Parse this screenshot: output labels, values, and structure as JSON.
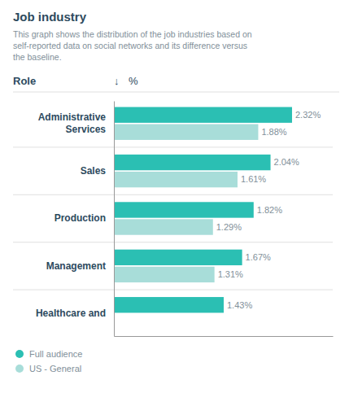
{
  "chart_data": {
    "type": "bar",
    "orientation": "horizontal",
    "title": "Job industry",
    "subtitle": "This graph shows the distribution of the job industries based on\nself-reported data on social networks and its difference versus\nthe baseline.",
    "ylabel": "Role",
    "xlabel": "%",
    "annotations": [
      "↓"
    ],
    "categories": [
      "Administrative\nServices",
      "Sales",
      "Production",
      "Management",
      "Healthcare and"
    ],
    "series": [
      {
        "name": "Full audience",
        "color": "#2bbfb3",
        "values": [
          2.32,
          2.04,
          1.82,
          1.67,
          1.43
        ],
        "value_labels": [
          "2.32%",
          "2.04%",
          "1.82%",
          "1.67%",
          "1.43%"
        ]
      },
      {
        "name": "US - General",
        "color": "#a8ddd9",
        "values": [
          1.88,
          1.61,
          1.29,
          1.31,
          null
        ],
        "value_labels": [
          "1.88%",
          "1.61%",
          "1.29%",
          "1.31%",
          null
        ]
      }
    ],
    "xlim": [
      0,
      2.85
    ],
    "data_labels": true,
    "tick_labels": "y",
    "grid": false,
    "legend": "bottom"
  }
}
